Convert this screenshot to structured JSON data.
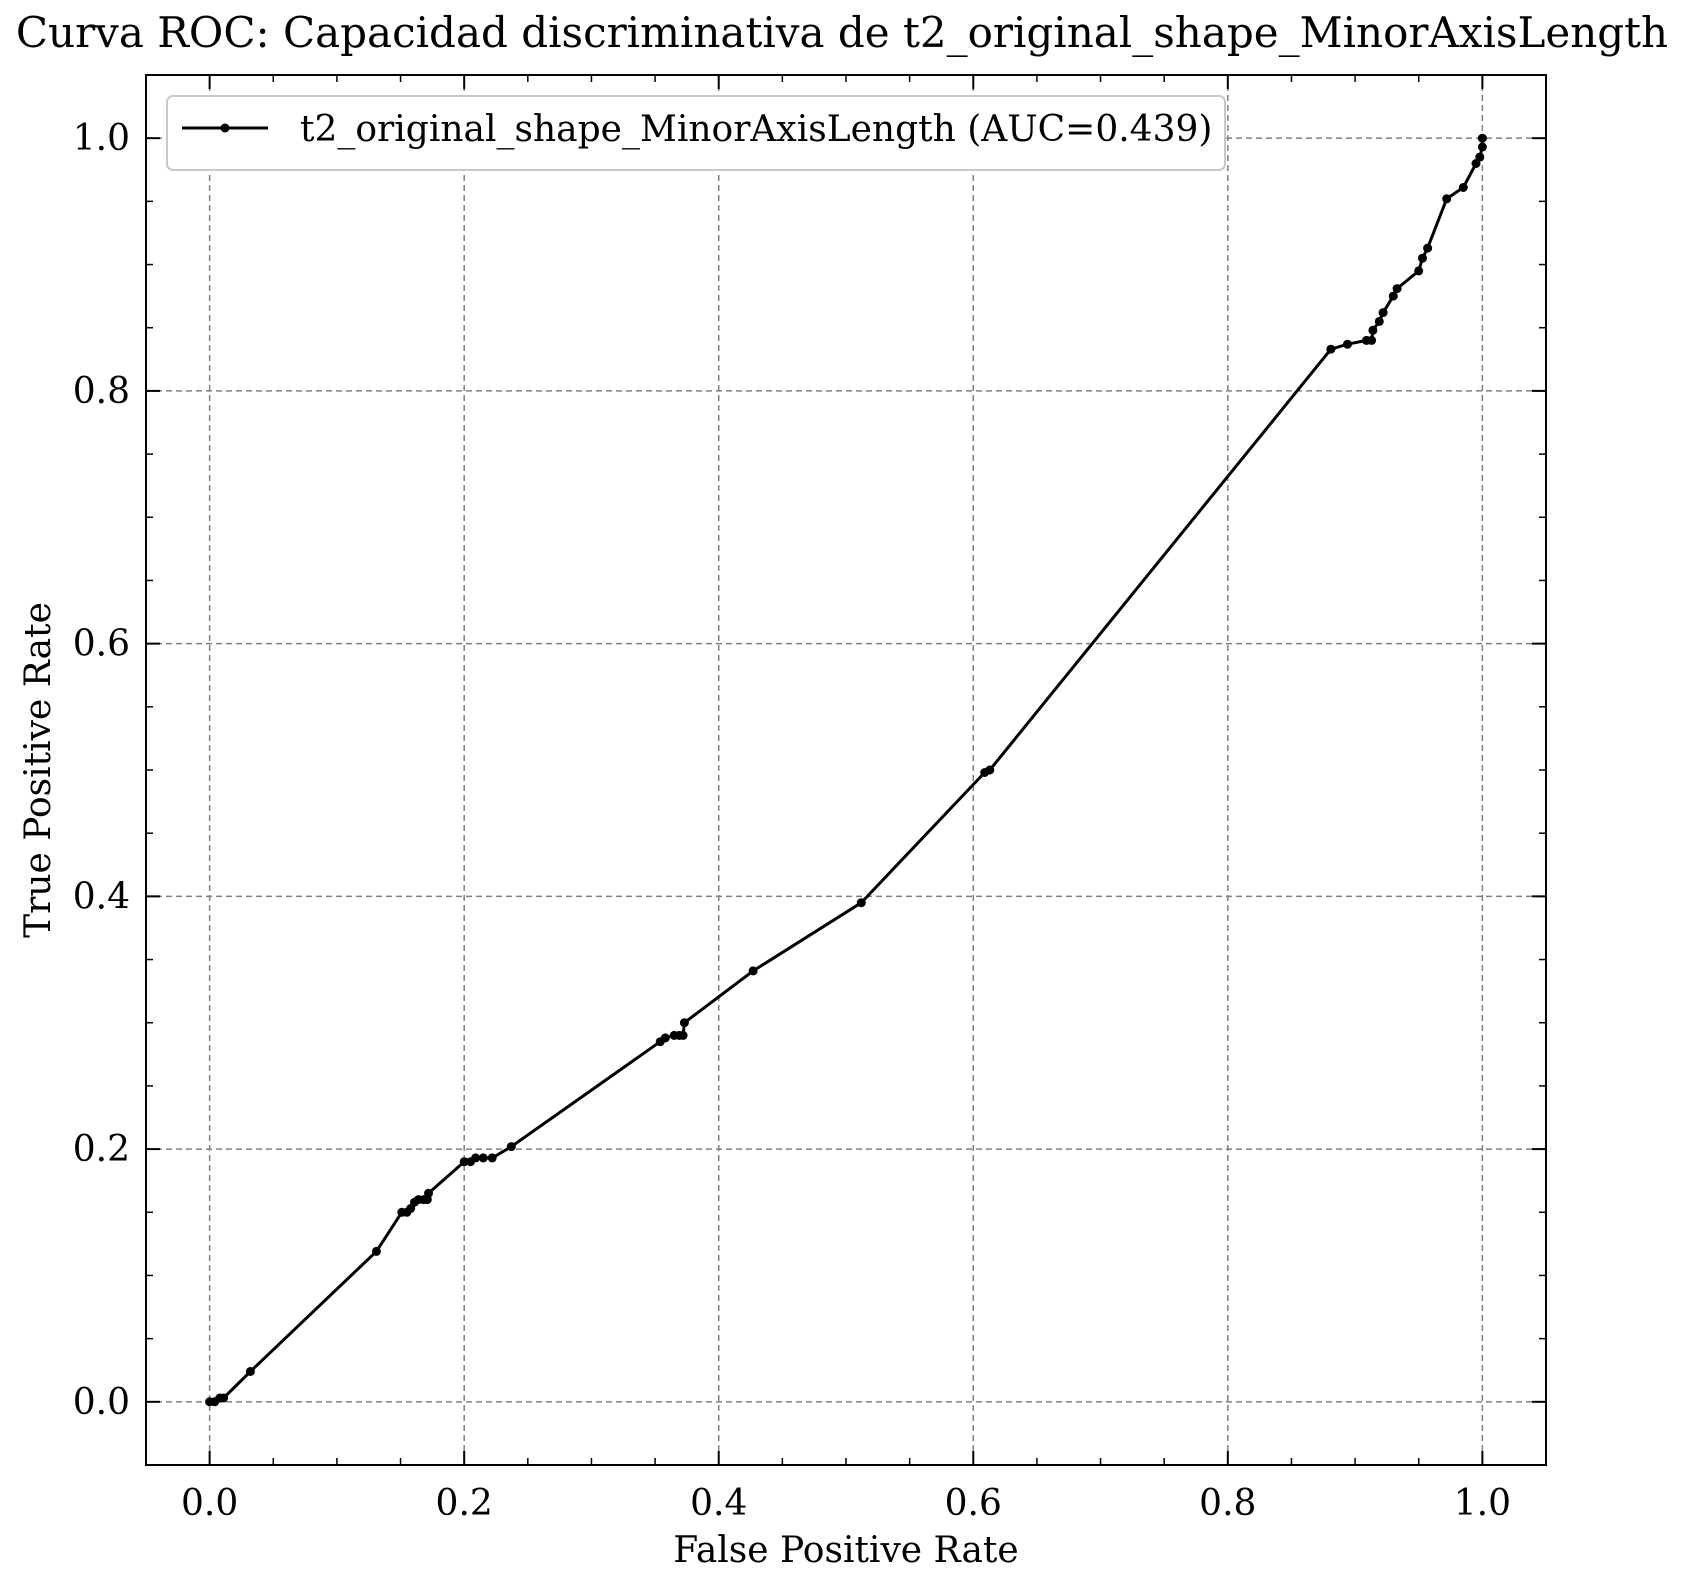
{
  "chart_data": {
    "type": "line",
    "title": "Curva ROC: Capacidad discriminativa de t2_original_shape_MinorAxisLength",
    "xlabel": "False Positive Rate",
    "ylabel": "True Positive Rate",
    "xlim": [
      -0.05,
      1.05
    ],
    "ylim": [
      -0.05,
      1.05
    ],
    "xticks": [
      "0.0",
      "0.2",
      "0.4",
      "0.6",
      "0.8",
      "1.0"
    ],
    "yticks": [
      "0.0",
      "0.2",
      "0.4",
      "0.6",
      "0.8",
      "1.0"
    ],
    "grid": true,
    "legend_position": "upper-left",
    "colors": {
      "line": "#000000",
      "grid": "#808080"
    },
    "series": [
      {
        "name": "t2_original_shape_MinorAxisLength (AUC=0.439)",
        "x": [
          0.0,
          0.004,
          0.008,
          0.011,
          0.032,
          0.131,
          0.151,
          0.155,
          0.158,
          0.161,
          0.164,
          0.168,
          0.171,
          0.172,
          0.2,
          0.205,
          0.209,
          0.215,
          0.222,
          0.237,
          0.354,
          0.358,
          0.365,
          0.369,
          0.372,
          0.373,
          0.427,
          0.512,
          0.609,
          0.613,
          0.881,
          0.894,
          0.909,
          0.913,
          0.914,
          0.919,
          0.922,
          0.93,
          0.933,
          0.95,
          0.953,
          0.957,
          0.972,
          0.985,
          0.995,
          0.998,
          1.0,
          1.0
        ],
        "y": [
          0.0,
          0.0,
          0.003,
          0.003,
          0.024,
          0.119,
          0.15,
          0.15,
          0.153,
          0.158,
          0.16,
          0.16,
          0.16,
          0.165,
          0.19,
          0.19,
          0.193,
          0.193,
          0.193,
          0.202,
          0.285,
          0.288,
          0.29,
          0.29,
          0.29,
          0.3,
          0.341,
          0.395,
          0.498,
          0.5,
          0.833,
          0.837,
          0.84,
          0.84,
          0.848,
          0.855,
          0.862,
          0.875,
          0.881,
          0.895,
          0.905,
          0.913,
          0.952,
          0.961,
          0.98,
          0.985,
          0.993,
          1.0
        ]
      }
    ]
  }
}
